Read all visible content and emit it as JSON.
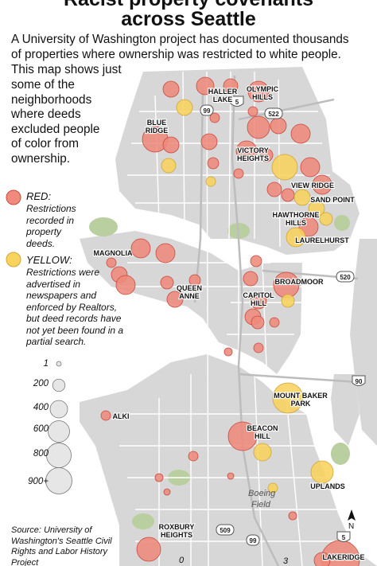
{
  "title": {
    "line1": "Racist property covenants",
    "line2": "across Seattle"
  },
  "intro": {
    "line1": "A University of Washington project has documented thousands",
    "line2": "of properties where ownership was restricted to white people.",
    "line3": "This map shows just",
    "line4": "some of the neighborhoods where deeds excluded people of color from ownership."
  },
  "legend": {
    "red": {
      "label": "RED:",
      "text": "Restrictions recorded in property deeds.",
      "color": "#ef8a7c"
    },
    "yellow": {
      "label": "YELLOW:",
      "text": "Restrictions were advertised in newspapers and enforced by Realtors, but deed records have not yet been found in a partial search.",
      "color": "#f8d35e"
    },
    "sizes": [
      {
        "label": "1",
        "value": 1
      },
      {
        "label": "200",
        "value": 200
      },
      {
        "label": "400",
        "value": 400
      },
      {
        "label": "600",
        "value": 600
      },
      {
        "label": "800",
        "value": 800
      },
      {
        "label": "900+",
        "value": 900
      }
    ]
  },
  "neighborhoods": [
    {
      "name": "HALLER",
      "name2": "LAKE"
    },
    {
      "name": "OLYMPIC",
      "name2": "HILLS"
    },
    {
      "name": "BLUE",
      "name2": "RIDGE"
    },
    {
      "name": "VICTORY",
      "name2": "HEIGHTS"
    },
    {
      "name": "VIEW RIDGE",
      "name2": ""
    },
    {
      "name": "SAND POINT",
      "name2": ""
    },
    {
      "name": "HAWTHORNE",
      "name2": "HILLS"
    },
    {
      "name": "LAURELHURST",
      "name2": ""
    },
    {
      "name": "MAGNOLIA",
      "name2": ""
    },
    {
      "name": "QUEEN",
      "name2": "ANNE"
    },
    {
      "name": "BROADMOOR",
      "name2": ""
    },
    {
      "name": "CAPITOL",
      "name2": "HILL"
    },
    {
      "name": "MOUNT BAKER",
      "name2": "PARK"
    },
    {
      "name": "ALKI",
      "name2": ""
    },
    {
      "name": "BEACON",
      "name2": "HILL"
    },
    {
      "name": "UPLANDS",
      "name2": ""
    },
    {
      "name": "ROXBURY",
      "name2": "HEIGHTS"
    },
    {
      "name": "LAKERIDGE",
      "name2": ""
    }
  ],
  "places": {
    "boeing_field": {
      "line1": "Boeing",
      "line2": "Field"
    }
  },
  "highways": [
    "5",
    "99",
    "522",
    "520",
    "90",
    "509",
    "99",
    "5"
  ],
  "north_label": "N",
  "scale_labels": [
    "0",
    "3"
  ],
  "source": "Source: University of Washington's Seattle Civil Rights and Labor History Project",
  "colors": {
    "land": "#d7d7d7",
    "water": "#ffffff",
    "park": "#b9cf9f",
    "road": "#ffffff",
    "red_circle": "#ef8a7c",
    "red_stroke": "#c8493e",
    "yellow_circle": "#f8d35e",
    "yellow_stroke": "#d1a53a"
  }
}
